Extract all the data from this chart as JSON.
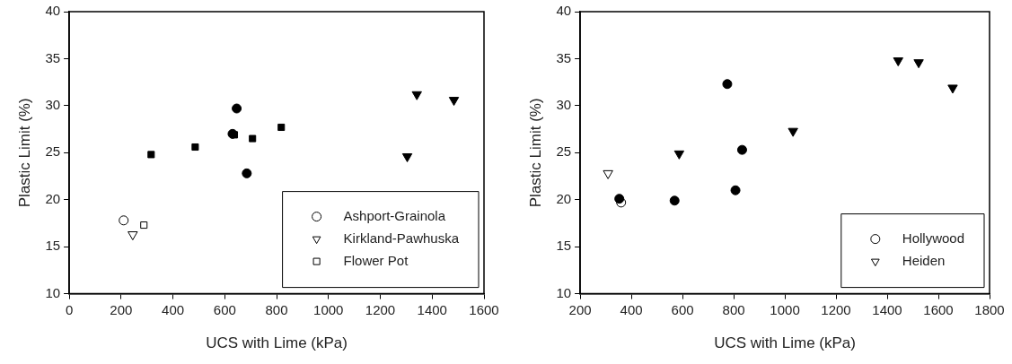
{
  "chart_data": [
    {
      "type": "scatter",
      "xlabel": "UCS with Lime (kPa)",
      "ylabel": "Plastic Limit (%)",
      "xlim": [
        0,
        1600
      ],
      "xticks": [
        0,
        200,
        400,
        600,
        800,
        1000,
        1200,
        1400,
        1600
      ],
      "ylim": [
        10,
        40
      ],
      "yticks": [
        10,
        15,
        20,
        25,
        30,
        35,
        40
      ],
      "legend": "bottom right",
      "series": [
        {
          "name": "Ashport-Grainola",
          "color": "#ffffff",
          "marker": "circle",
          "x": [
            210
          ],
          "values": [
            17.8
          ]
        },
        {
          "name": "Kirkland-Pawhuska",
          "color": "#ffffff",
          "marker": "triangle",
          "x": [
            245
          ],
          "values": [
            16.3
          ]
        },
        {
          "name": "Flower Pot",
          "color": "#ffffff",
          "marker": "square",
          "x": [
            288
          ],
          "values": [
            17.3
          ]
        },
        {
          "color": "#000000",
          "marker": "circle",
          "x": [
            646,
            630,
            685
          ],
          "values": [
            29.7,
            27.0,
            22.8
          ]
        },
        {
          "color": "#000000",
          "marker": "square",
          "x": [
            316,
            486,
            637,
            707,
            818
          ],
          "values": [
            24.8,
            25.6,
            26.9,
            26.5,
            27.7
          ]
        },
        {
          "color": "#000000",
          "marker": "triangle",
          "x": [
            1341,
            1484,
            1304
          ],
          "values": [
            31.2,
            30.6,
            24.6
          ]
        }
      ]
    },
    {
      "type": "scatter",
      "xlabel": "UCS with Lime (kPa)",
      "ylabel": "Plastic Limit (%)",
      "xlim": [
        200,
        1800
      ],
      "xticks": [
        200,
        400,
        600,
        800,
        1000,
        1200,
        1400,
        1600,
        1800
      ],
      "ylim": [
        10,
        40
      ],
      "yticks": [
        10,
        15,
        20,
        25,
        30,
        35,
        40
      ],
      "legend": "bottom right",
      "series": [
        {
          "name": "Hollywood",
          "color": "#ffffff",
          "marker": "circle",
          "x": [
            360
          ],
          "values": [
            19.7
          ]
        },
        {
          "name": "Heiden",
          "color": "#ffffff",
          "marker": "triangle",
          "x": [
            309
          ],
          "values": [
            22.8
          ]
        },
        {
          "color": "#000000",
          "marker": "circle",
          "x": [
            353,
            569,
            775,
            833,
            807
          ],
          "values": [
            20.1,
            19.9,
            32.3,
            25.3,
            21.0
          ]
        },
        {
          "color": "#000000",
          "marker": "triangle",
          "x": [
            587,
            1032,
            1443,
            1523,
            1656
          ],
          "values": [
            24.9,
            27.3,
            34.8,
            34.6,
            31.9
          ]
        }
      ]
    }
  ]
}
